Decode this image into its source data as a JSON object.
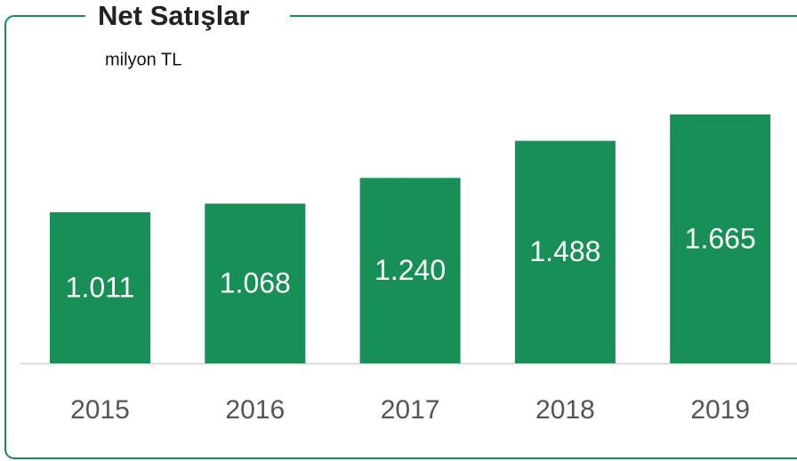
{
  "chart_data": {
    "type": "bar",
    "title": "Net Satışlar",
    "subtitle": "milyon TL",
    "categories": [
      "2015",
      "2016",
      "2017",
      "2018",
      "2019"
    ],
    "values": [
      1011,
      1068,
      1240,
      1488,
      1665
    ],
    "value_labels": [
      "1.011",
      "1.068",
      "1.240",
      "1.488",
      "1.665"
    ],
    "color": "#178f57"
  }
}
